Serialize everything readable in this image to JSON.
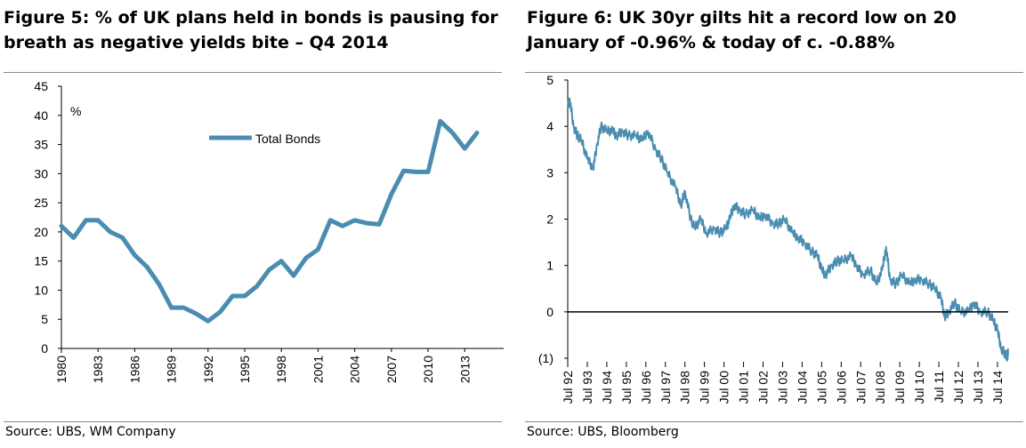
{
  "figure5": {
    "title": "Figure 5: % of UK plans held in bonds is pausing for breath as negative yields bite – Q4 2014",
    "source": "Source:  UBS, WM Company"
  },
  "figure6": {
    "title": "Figure 6: UK 30yr gilts hit a record low on 20 January of -0.96% & today of c. -0.88%",
    "source": "Source:  UBS, Bloomberg"
  },
  "chart_data": [
    {
      "type": "line",
      "title": "Figure 5: % of UK plans held in bonds is pausing for breath as negative yields bite – Q4 2014",
      "ylabel": "%",
      "ylim": [
        0,
        45
      ],
      "yticks": [
        "0",
        "5",
        "10",
        "15",
        "20",
        "25",
        "30",
        "35",
        "40",
        "45"
      ],
      "xlabels": [
        "1980",
        "1983",
        "1986",
        "1989",
        "1992",
        "1995",
        "1998",
        "2001",
        "2004",
        "2007",
        "2010",
        "2013"
      ],
      "legend": "top-center",
      "series": [
        {
          "name": "Total Bonds",
          "color": "#4a8db0",
          "x": [
            1980,
            1981,
            1982,
            1983,
            1984,
            1985,
            1986,
            1987,
            1988,
            1989,
            1990,
            1991,
            1992,
            1993,
            1994,
            1995,
            1996,
            1997,
            1998,
            1999,
            2000,
            2001,
            2002,
            2003,
            2004,
            2005,
            2006,
            2007,
            2008,
            2009,
            2010,
            2011,
            2012,
            2013,
            2014
          ],
          "values": [
            21,
            19,
            22,
            22,
            20,
            19,
            16,
            14,
            11,
            7,
            7,
            6,
            4.7,
            6.3,
            9,
            9,
            10.7,
            13.5,
            15,
            12.5,
            15.5,
            17,
            22,
            21,
            22,
            21.5,
            21.3,
            26.5,
            30.5,
            30.3,
            30.3,
            39,
            37,
            34.3,
            37
          ]
        }
      ]
    },
    {
      "type": "line",
      "title": "Figure 6: UK 30yr gilts hit a record low on 20 January of -0.96% & today of c. -0.88%",
      "ylim": [
        -1,
        5
      ],
      "yticks": [
        "(1)",
        "0",
        "1",
        "2",
        "3",
        "4",
        "5"
      ],
      "xlabels": [
        "Jul 92",
        "Jul 93",
        "Jul 94",
        "Jul 95",
        "Jul 96",
        "Jul 97",
        "Jul 98",
        "Jul 99",
        "Jul 00",
        "Jul 01",
        "Jul 02",
        "Jul 03",
        "Jul 04",
        "Jul 05",
        "Jul 06",
        "Jul 07",
        "Jul 08",
        "Jul 09",
        "Jul 10",
        "Jul 11",
        "Jul 12",
        "Jul 13",
        "Jul 14"
      ],
      "zero_line": true,
      "series": [
        {
          "color": "#4a8db0",
          "x": [
            1992.5,
            1992.6,
            1992.8,
            1993.0,
            1993.2,
            1993.5,
            1993.8,
            1994.0,
            1994.2,
            1994.5,
            1994.8,
            1995.0,
            1995.3,
            1995.6,
            1996.0,
            1996.3,
            1996.6,
            1997.0,
            1997.3,
            1997.6,
            1998.0,
            1998.3,
            1998.5,
            1998.8,
            1999.0,
            1999.3,
            1999.6,
            2000.0,
            2000.3,
            2000.6,
            2000.8,
            2001.0,
            2001.3,
            2001.6,
            2002.0,
            2002.3,
            2002.6,
            2003.0,
            2003.3,
            2003.6,
            2004.0,
            2004.3,
            2004.6,
            2005.0,
            2005.3,
            2005.5,
            2005.7,
            2006.0,
            2006.3,
            2006.6,
            2007.0,
            2007.3,
            2007.6,
            2008.0,
            2008.3,
            2008.6,
            2008.8,
            2009.0,
            2009.3,
            2009.6,
            2010.0,
            2010.3,
            2010.6,
            2011.0,
            2011.3,
            2011.6,
            2011.8,
            2012.0,
            2012.3,
            2012.6,
            2013.0,
            2013.3,
            2013.6,
            2014.0,
            2014.3,
            2014.5,
            2014.7,
            2014.9,
            2015.0,
            2015.05
          ],
          "values": [
            4.4,
            4.6,
            4.0,
            3.8,
            3.7,
            3.3,
            3.1,
            3.6,
            4.0,
            3.9,
            3.9,
            3.8,
            3.9,
            3.8,
            3.8,
            3.7,
            3.9,
            3.5,
            3.3,
            3.0,
            2.7,
            2.3,
            2.6,
            2.0,
            1.8,
            2.0,
            1.7,
            1.8,
            1.7,
            1.8,
            2.0,
            2.3,
            2.2,
            2.1,
            2.2,
            2.0,
            2.1,
            1.9,
            1.9,
            2.0,
            1.7,
            1.6,
            1.5,
            1.3,
            1.2,
            0.9,
            0.8,
            1.0,
            1.1,
            1.1,
            1.2,
            1.0,
            0.8,
            0.9,
            0.6,
            0.9,
            1.4,
            0.7,
            0.6,
            0.8,
            0.6,
            0.7,
            0.7,
            0.6,
            0.5,
            0.3,
            -0.1,
            0.0,
            0.2,
            0.0,
            0.0,
            0.2,
            0.0,
            0.0,
            -0.2,
            -0.4,
            -0.8,
            -0.9,
            -0.96,
            -0.88
          ]
        }
      ]
    }
  ]
}
